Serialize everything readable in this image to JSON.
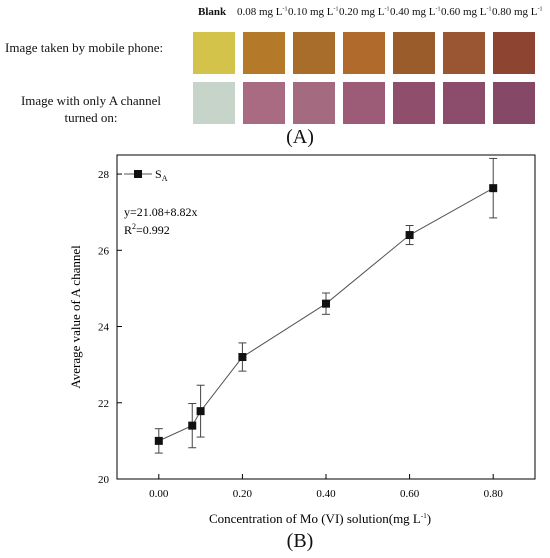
{
  "panel_a": {
    "headers": [
      "Blank",
      "0.08 mg L",
      "0.10 mg L",
      "0.20 mg L",
      "0.40 mg L",
      "0.60 mg L",
      "0.80 mg L"
    ],
    "header_sup": "-1",
    "row1_label": "Image taken by mobile phone:",
    "row2_label_line1": "Image with only A channel",
    "row2_label_line2": "turned on:",
    "row1_colors": [
      "#d4c34a",
      "#b5792a",
      "#a86d2b",
      "#b06a2b",
      "#9b5c2c",
      "#9a5532",
      "#8d4531"
    ],
    "row2_colors": [
      "#c6d4c9",
      "#a86b81",
      "#a46a80",
      "#9c5c77",
      "#8f4e6c",
      "#8c4d6c",
      "#854866"
    ],
    "caption": "(A)"
  },
  "panel_b_caption": "(B)",
  "chart_data": {
    "type": "line",
    "x": [
      0.0,
      0.08,
      0.1,
      0.2,
      0.4,
      0.6,
      0.8
    ],
    "series": [
      {
        "name": "S",
        "name_sub": "A",
        "values": [
          21.0,
          21.4,
          21.78,
          23.2,
          24.6,
          26.4,
          27.63
        ],
        "errors": [
          0.32,
          0.58,
          0.68,
          0.37,
          0.28,
          0.25,
          0.78
        ]
      }
    ],
    "xlabel": "Concentration of Mo (VI) solution(mg L",
    "xlabel_sup": "-1",
    "xlabel_end": ")",
    "ylabel": "Average value of A channel",
    "xlim": [
      -0.1,
      0.9
    ],
    "ylim": [
      20,
      28.5
    ],
    "xticks": [
      "0.00",
      "0.20",
      "0.40",
      "0.60",
      "0.80"
    ],
    "yticks": [
      "20",
      "22",
      "24",
      "26",
      "28"
    ],
    "annotation_eq": "y=21.08+8.82x",
    "annotation_r2_a": "R",
    "annotation_r2_sup": "2",
    "annotation_r2_b": "=0.992",
    "grid": false,
    "legend_position": "top-left"
  }
}
